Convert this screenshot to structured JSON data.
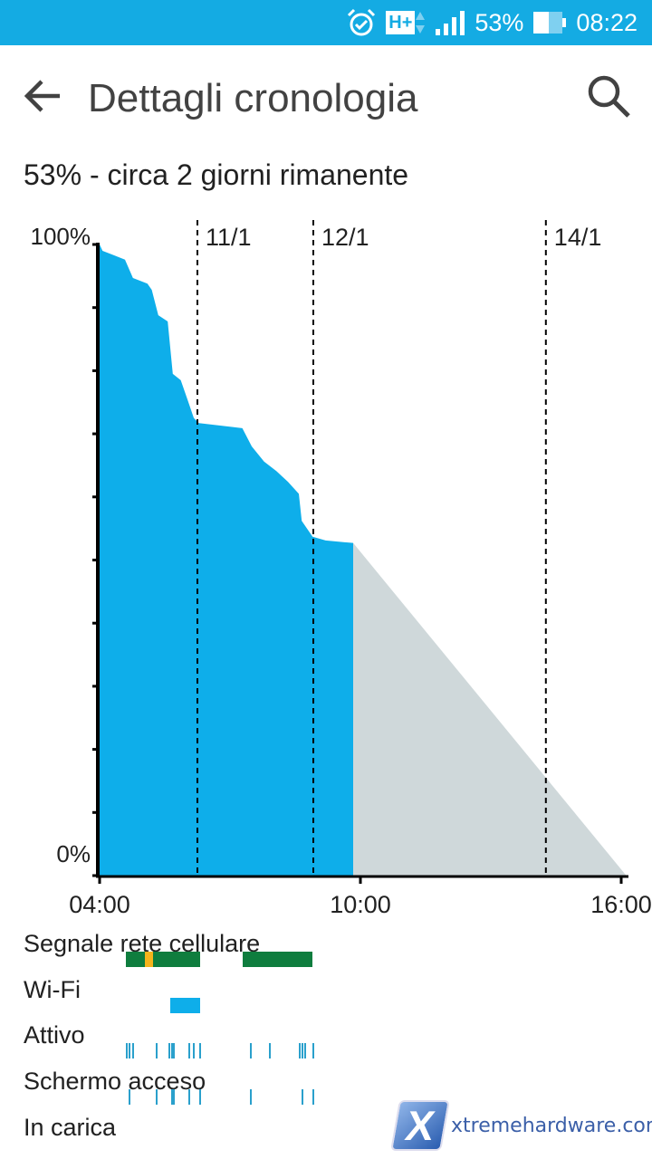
{
  "status_bar": {
    "icons": [
      "alarm-icon",
      "hplus-network-icon",
      "signal-icon",
      "battery-icon"
    ],
    "network": "H+",
    "battery": "53%",
    "time": "08:22",
    "color": "#14abe3"
  },
  "app_bar": {
    "back_icon": "arrow-left-icon",
    "title": "Dettagli cronologia",
    "search_icon": "search-icon"
  },
  "summary": "53% - circa 2 giorni rimanente",
  "chart_data": {
    "type": "area",
    "ylim": [
      0,
      100
    ],
    "xlim": [
      "04:00",
      "16:07"
    ],
    "y_tick_labels": [
      "100%",
      "0%"
    ],
    "y_ticks": [
      0,
      10,
      20,
      30,
      40,
      50,
      60,
      70,
      80,
      90,
      100
    ],
    "x_tick_labels": [
      "04:00",
      "10:00",
      "16:00"
    ],
    "date_markers": [
      {
        "time": "06:15",
        "label": "11/1"
      },
      {
        "time": "08:55",
        "label": "12/1"
      },
      {
        "time": "14:16",
        "label": "14/1"
      }
    ],
    "series": [
      {
        "kind": "actual",
        "color": "#0eaeea",
        "points": [
          [
            "04:00",
            100
          ],
          [
            "04:04",
            99
          ],
          [
            "04:35",
            97.6
          ],
          [
            "04:46",
            94.7
          ],
          [
            "05:06",
            93.8
          ],
          [
            "05:12",
            92.8
          ],
          [
            "05:21",
            88.8
          ],
          [
            "05:34",
            87.8
          ],
          [
            "05:41",
            79.5
          ],
          [
            "05:52",
            78.5
          ],
          [
            "06:02",
            75.2
          ],
          [
            "06:10",
            72.5
          ],
          [
            "06:17",
            71.7
          ],
          [
            "07:17",
            70.9
          ],
          [
            "07:30",
            68
          ],
          [
            "07:47",
            65.6
          ],
          [
            "08:04",
            64.1
          ],
          [
            "08:20",
            62.4
          ],
          [
            "08:35",
            60.5
          ],
          [
            "08:39",
            56.2
          ],
          [
            "08:54",
            53.7
          ],
          [
            "09:12",
            53.1
          ],
          [
            "09:50",
            52.7
          ]
        ]
      },
      {
        "kind": "predicted",
        "color": "#cfd8da",
        "points": [
          [
            "09:50",
            52.7
          ],
          [
            "16:07",
            0
          ]
        ]
      }
    ]
  },
  "tracks": [
    {
      "label": "Segnale rete cellulare",
      "type": "ranges",
      "color": "#0f7d3e",
      "ranges": [
        [
          "04:36",
          "06:19"
        ],
        [
          "07:17",
          "08:54"
        ]
      ],
      "highlight": {
        "color": "#f6b41c",
        "ranges": [
          [
            "05:02",
            "05:14"
          ]
        ]
      }
    },
    {
      "label": "Wi-Fi",
      "type": "ranges",
      "color": "#0eaeea",
      "ranges": [
        [
          "05:38",
          "06:19"
        ]
      ]
    },
    {
      "label": "Attivo",
      "type": "ticks",
      "color": "#2aa0cc",
      "ticks": [
        "04:36",
        "04:40",
        "04:45",
        "05:18",
        "05:35",
        "05:39",
        "05:41",
        "06:02",
        "06:09",
        "06:17",
        "07:27",
        "07:54",
        "08:35",
        "08:39",
        "08:43",
        "08:54"
      ]
    },
    {
      "label": "Schermo acceso",
      "type": "ticks",
      "color": "#2aa0cc",
      "ticks": [
        "04:40",
        "05:18",
        "05:39",
        "05:41",
        "06:02",
        "06:17",
        "07:27",
        "08:39",
        "08:54"
      ]
    },
    {
      "label": "In carica",
      "type": "ranges",
      "color": "#0eaeea",
      "ranges": []
    }
  ],
  "watermark": "xtremehardware.com"
}
